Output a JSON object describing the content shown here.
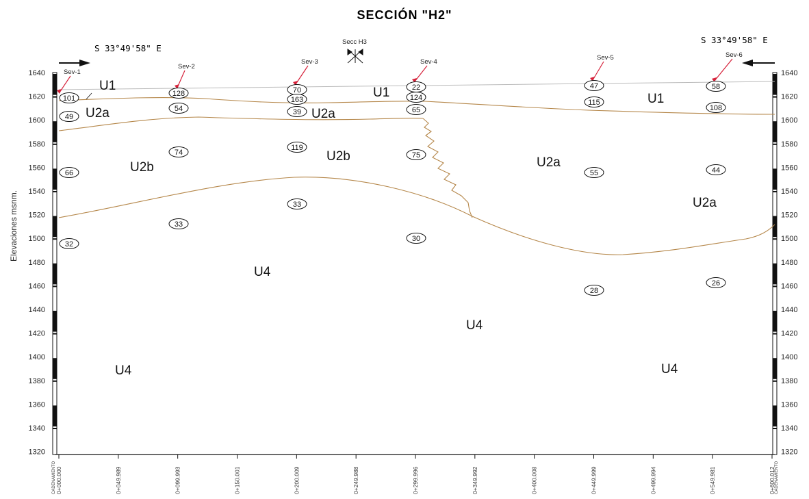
{
  "title": "SECCIÓN \"H2\"",
  "bearing_left": "S 33°49'58\" E",
  "bearing_right": "S 33°49'58\" E",
  "cross_section_label": "Secc H3",
  "y_axis_label": "Elevaciones msnm.",
  "y_ticks": [
    "1640",
    "1620",
    "1600",
    "1580",
    "1560",
    "1540",
    "1520",
    "1500",
    "1480",
    "1460",
    "1440",
    "1420",
    "1400",
    "1380",
    "1360",
    "1340",
    "1320"
  ],
  "stations": [
    "0+000.000",
    "0+049.989",
    "0+099.993",
    "0+150.001",
    "0+200.009",
    "0+249.988",
    "0+299.996",
    "0+349.992",
    "0+400.008",
    "0+449.999",
    "0+499.994",
    "0+549.981",
    "0+600.012"
  ],
  "station_header_left": "CADENAMIENTO",
  "station_header_right": "CADENAMIENTO",
  "soundings": [
    {
      "name": "Sev-1",
      "values": [
        "101",
        "49",
        "66",
        "32"
      ]
    },
    {
      "name": "Sev-2",
      "values": [
        "128",
        "54",
        "74",
        "33"
      ]
    },
    {
      "name": "Sev-3",
      "values": [
        "70",
        "163",
        "39",
        "119",
        "33"
      ]
    },
    {
      "name": "Sev-4",
      "values": [
        "22",
        "124",
        "65",
        "75",
        "30"
      ]
    },
    {
      "name": "Sev-5",
      "values": [
        "47",
        "115",
        "55",
        "28"
      ]
    },
    {
      "name": "Sev-6",
      "values": [
        "58",
        "108",
        "44",
        "26"
      ]
    }
  ],
  "units": [
    "U1",
    "U1",
    "U1",
    "U2a",
    "U2a",
    "U2a",
    "U2a",
    "U2b",
    "U2b",
    "U4",
    "U4",
    "U4",
    "U4"
  ],
  "colors": {
    "boundary": "#b5874a",
    "arrow": "#d6213a",
    "frame": "#111111",
    "ground": "#bbbbbb"
  }
}
